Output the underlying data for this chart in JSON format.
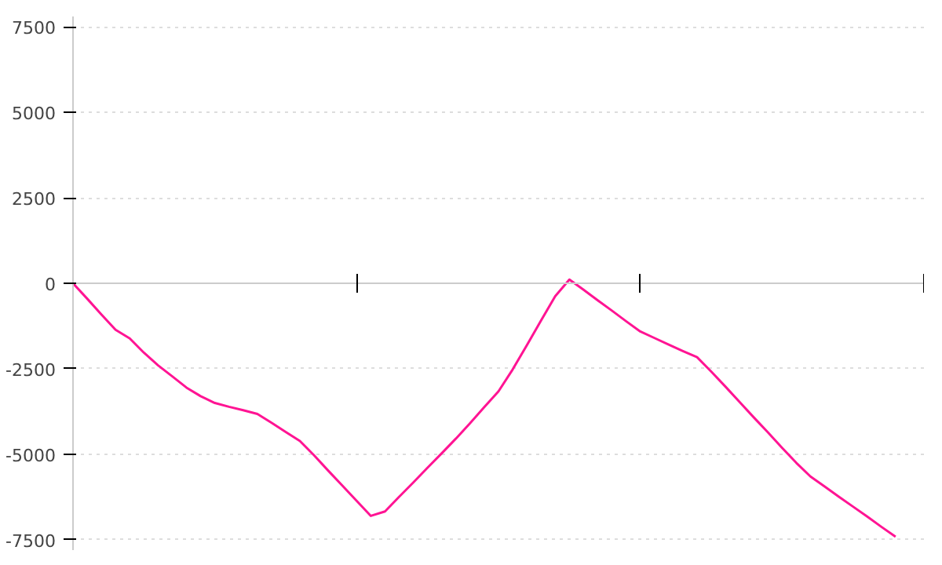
{
  "chart_data": {
    "type": "line",
    "categories": [
      null,
      null,
      null,
      null,
      null,
      null,
      null,
      null,
      null,
      null,
      null,
      null,
      null,
      null,
      null,
      null,
      null,
      null,
      null,
      null,
      null,
      null,
      null,
      null,
      null,
      null,
      null,
      null,
      null,
      null,
      null,
      null,
      null,
      null,
      null,
      null,
      null,
      null,
      null,
      null,
      null,
      null,
      null,
      null,
      null,
      null,
      null,
      null,
      null,
      null,
      null,
      null,
      null,
      null,
      null,
      null,
      null,
      null,
      null
    ],
    "series": [
      {
        "color": "#ff1493",
        "values": [
          0,
          -450,
          -910,
          -1360,
          -1610,
          -2030,
          -2400,
          -2720,
          -3050,
          -3300,
          -3500,
          -3610,
          -3710,
          -3820,
          -4080,
          -4350,
          -4610,
          -5030,
          -5480,
          -5920,
          -6360,
          -6800,
          -6670,
          -6240,
          -5820,
          -5390,
          -4970,
          -4540,
          -4090,
          -3620,
          -3160,
          -2520,
          -1810,
          -1090,
          -380,
          110,
          -190,
          -500,
          -800,
          -1110,
          -1410,
          -1600,
          -1790,
          -1980,
          -2160,
          -2580,
          -3020,
          -3470,
          -3920,
          -4360,
          -4810,
          -5250,
          -5650,
          -5940,
          -6240,
          -6530,
          -6820,
          -7120,
          -7410
        ]
      }
    ],
    "ylim": [
      -7800,
      7800
    ],
    "yticks": [
      -7500,
      -5000,
      -2500,
      0,
      2500,
      5000,
      7500
    ],
    "grid": "y",
    "marker": "none",
    "line_style": "solid"
  }
}
